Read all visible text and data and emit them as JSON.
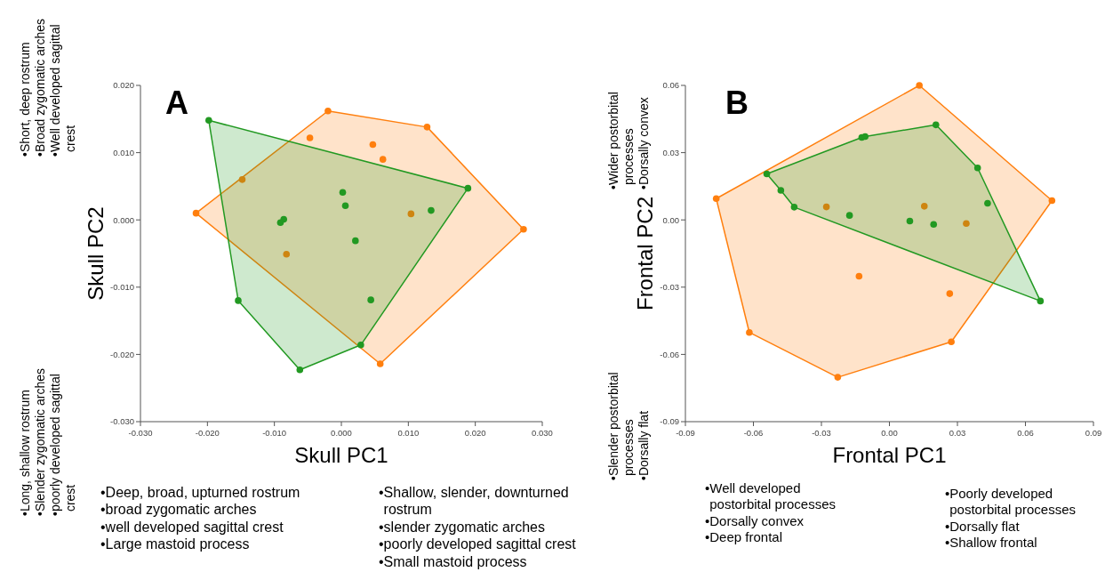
{
  "chart_data": [
    {
      "type": "scatter",
      "title": "A",
      "xlabel": "Skull PC1",
      "ylabel": "Skull PC2",
      "marker": "circle",
      "annotations": [
        "•Short, deep rostrum\n•Broad zygomatic arches\n•Well developed sagittal crest",
        "•Long, shallow rostrum\n•Slender zygomatic arches\n•poorly developed sagittal crest",
        "•Deep, broad, upturned rostrum\n•broad zygomatic arches\n•well developed sagittal crest\n•Large mastoid process",
        "•Shallow, slender, downturned rostrum\n•slender zygomatic arches\n•poorly developed sagittal crest\n•Small mastoid process"
      ],
      "xlim": [
        -0.03,
        0.03
      ],
      "ylim": [
        -0.03,
        0.02
      ],
      "xticks": [
        {
          "value": -0.03,
          "label": "-0.030"
        },
        {
          "value": -0.02,
          "label": "-0.020"
        },
        {
          "value": -0.01,
          "label": "-0.010"
        },
        {
          "value": 0,
          "label": "0.000"
        },
        {
          "value": 0.01,
          "label": "0.010"
        },
        {
          "value": 0.02,
          "label": "0.020"
        },
        {
          "value": 0.03,
          "label": "0.030"
        }
      ],
      "yticks": [
        {
          "value": -0.03,
          "label": "-0.030"
        },
        {
          "value": -0.02,
          "label": "-0.020"
        },
        {
          "value": -0.01,
          "label": "-0.010"
        },
        {
          "value": 0,
          "label": "0.000"
        },
        {
          "value": 0.01,
          "label": "0.010"
        },
        {
          "value": 0.02,
          "label": "0.020"
        }
      ],
      "series": [
        {
          "type": "area",
          "marker": "none",
          "color": "#ff7f0e",
          "x": [
            -0.002,
            0.0128,
            0.0272,
            0.0058,
            -0.0217
          ],
          "values": [
            0.0162,
            0.0138,
            -0.0014,
            -0.0214,
            0.001
          ]
        },
        {
          "color": "#ff7f0e",
          "x": [
            -0.002,
            0.0128,
            0.0272,
            0.0058,
            -0.0217,
            -0.0047,
            0.0047,
            0.0062,
            -0.0148,
            0.0104,
            -0.0082
          ],
          "values": [
            0.0162,
            0.0138,
            -0.0014,
            -0.0214,
            0.001,
            0.0122,
            0.0112,
            0.009,
            0.006,
            0.0009,
            -0.0051
          ]
        },
        {
          "type": "area",
          "marker": "none",
          "color": "#229922",
          "x": [
            -0.0198,
            0.0189,
            0.0029,
            -0.0062,
            -0.0154
          ],
          "values": [
            0.0148,
            0.0047,
            -0.0186,
            -0.0223,
            -0.012
          ]
        },
        {
          "color": "#229922",
          "x": [
            -0.0198,
            0.0189,
            0.0029,
            -0.0062,
            -0.0154,
            0.0002,
            0.0006,
            -0.0086,
            -0.0091,
            0.0021,
            0.0044,
            0.0134
          ],
          "values": [
            0.0148,
            0.0047,
            -0.0186,
            -0.0223,
            -0.012,
            0.0041,
            0.0021,
            0.0001,
            -0.0004,
            -0.0031,
            -0.0119,
            0.0014
          ]
        }
      ]
    },
    {
      "type": "scatter",
      "title": "B",
      "xlabel": "Frontal PC1",
      "ylabel": "Frontal PC2",
      "marker": "circle",
      "annotations": [
        "•Wider postorbital processes\n•Dorsally convex",
        "•Slender postorbital processes\n•Dorsally flat",
        "•Well developed postorbital processes\n•Dorsally convex\n•Deep frontal",
        "•Poorly developed postorbital processes\n•Dorsally flat\n•Shallow frontal"
      ],
      "xlim": [
        -0.09,
        0.09
      ],
      "ylim": [
        -0.09,
        0.06
      ],
      "xticks": [
        {
          "value": -0.09,
          "label": "-0.09"
        },
        {
          "value": -0.06,
          "label": "-0.06"
        },
        {
          "value": -0.03,
          "label": "-0.03"
        },
        {
          "value": 0,
          "label": "0.00"
        },
        {
          "value": 0.03,
          "label": "0.03"
        },
        {
          "value": 0.06,
          "label": "0.06"
        },
        {
          "value": 0.09,
          "label": "0.09"
        }
      ],
      "yticks": [
        {
          "value": -0.09,
          "label": "-0.09"
        },
        {
          "value": -0.06,
          "label": "-0.06"
        },
        {
          "value": -0.03,
          "label": "-0.03"
        },
        {
          "value": 0,
          "label": "0.00"
        },
        {
          "value": 0.03,
          "label": "0.03"
        },
        {
          "value": 0.06,
          "label": "0.06"
        }
      ],
      "series": [
        {
          "type": "area",
          "marker": "none",
          "color": "#ff7f0e",
          "x": [
            0.0132,
            0.0717,
            0.0273,
            -0.0228,
            -0.0618,
            -0.0764
          ],
          "values": [
            0.06,
            0.0086,
            -0.0544,
            -0.0702,
            -0.0502,
            0.0095
          ]
        },
        {
          "color": "#ff7f0e",
          "x": [
            0.0132,
            0.0717,
            0.0273,
            -0.0228,
            -0.0618,
            -0.0764,
            -0.0278,
            0.0154,
            0.0339,
            -0.0134,
            0.0266
          ],
          "values": [
            0.06,
            0.0086,
            -0.0544,
            -0.0702,
            -0.0502,
            0.0095,
            0.0058,
            0.0061,
            -0.0016,
            -0.0251,
            -0.0329
          ]
        },
        {
          "type": "area",
          "marker": "none",
          "color": "#229922",
          "x": [
            -0.0541,
            -0.0122,
            -0.0107,
            0.0205,
            0.0389,
            0.0666,
            -0.042,
            -0.0479
          ],
          "values": [
            0.0205,
            0.0368,
            0.0372,
            0.0424,
            0.0232,
            -0.0362,
            0.0057,
            0.0132
          ]
        },
        {
          "color": "#229922",
          "x": [
            -0.0541,
            -0.0479,
            -0.042,
            -0.0122,
            -0.0107,
            0.0205,
            0.0389,
            0.0433,
            0.0666,
            -0.0176,
            0.009,
            0.0195
          ],
          "values": [
            0.0205,
            0.0132,
            0.0057,
            0.0368,
            0.0372,
            0.0424,
            0.0232,
            0.0074,
            -0.0362,
            0.002,
            -0.0005,
            -0.002
          ]
        }
      ]
    }
  ]
}
